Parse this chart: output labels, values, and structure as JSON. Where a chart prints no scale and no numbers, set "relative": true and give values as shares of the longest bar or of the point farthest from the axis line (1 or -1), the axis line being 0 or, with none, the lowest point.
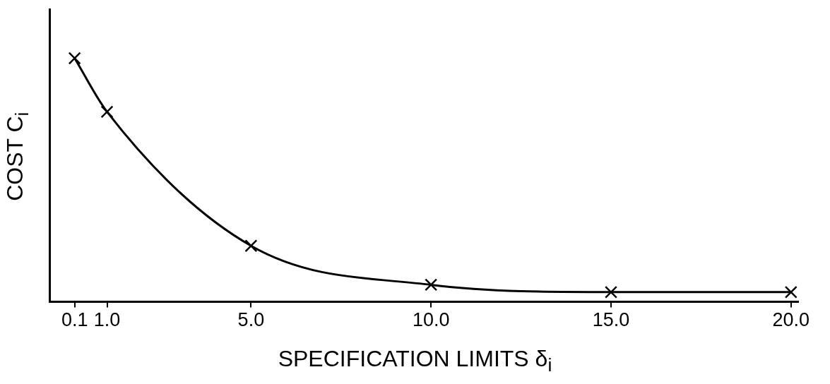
{
  "chart_data": {
    "type": "line",
    "relative": true,
    "xlabel": "SPECIFICATION LIMITS δ$_{i}$",
    "ylabel": "COST C$_{i}$",
    "x": [
      0.1,
      1.0,
      5.0,
      10.0,
      15.0,
      20.0
    ],
    "values": [
      1,
      0.78,
      0.23,
      0.07,
      0.04,
      0.04
    ],
    "color": "#000000",
    "marker": "cross",
    "line_style": "solid",
    "xlim": [
      -0.6,
      20.2
    ],
    "xticks": [
      {
        "value": 0.1,
        "label": "0.1"
      },
      {
        "value": 1.0,
        "label": "1.0"
      },
      {
        "value": 5.0,
        "label": "5.0"
      },
      {
        "value": 10.0,
        "label": "10.0"
      },
      {
        "value": 15.0,
        "label": "15.0"
      },
      {
        "value": 20.0,
        "label": "20.0"
      }
    ],
    "tick_labels": "x",
    "grid": false,
    "legend": false
  }
}
